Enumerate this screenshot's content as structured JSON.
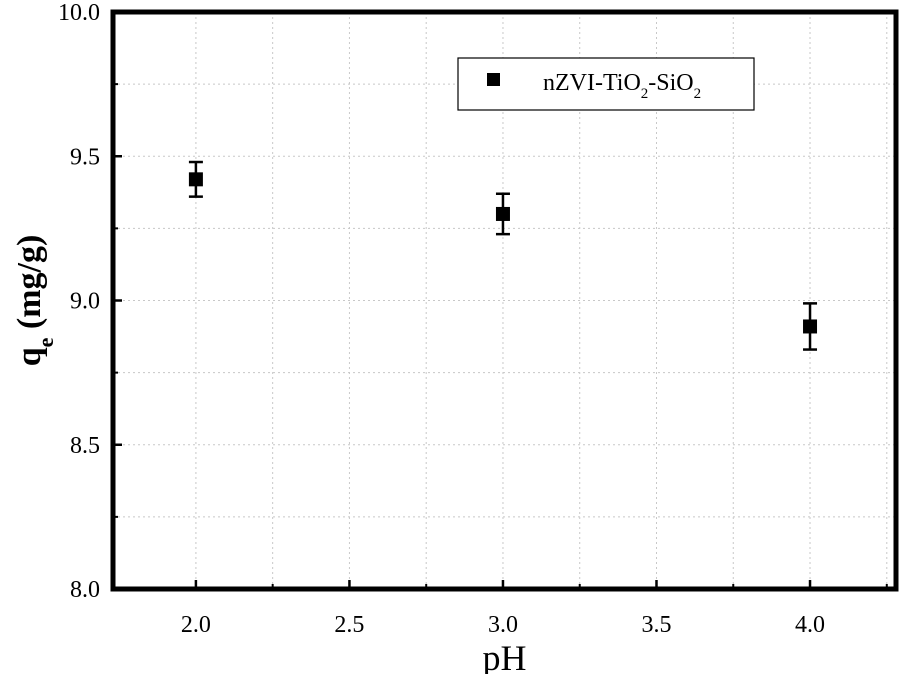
{
  "chart_data": {
    "type": "scatter",
    "title": "",
    "xlabel": "pH",
    "ylabel": "q",
    "ylabel_subscript": "e",
    "ylabel_unit": " (mg/g)",
    "xlim": [
      1.73,
      4.28
    ],
    "ylim": [
      8.0,
      10.0
    ],
    "xticks": [
      2.0,
      2.5,
      3.0,
      3.5,
      4.0
    ],
    "xtick_labels": [
      "2.0",
      "2.5",
      "3.0",
      "3.5",
      "4.0"
    ],
    "yticks": [
      8.0,
      8.5,
      9.0,
      9.5,
      10.0
    ],
    "ytick_labels": [
      "8.0",
      "8.5",
      "9.0",
      "9.5",
      "10.0"
    ],
    "grid": true,
    "legend_position": "top-right",
    "series": [
      {
        "name": "nZVI-TiO2-SiO2",
        "legend_parts": [
          {
            "text": "nZVI-TiO",
            "sub": false
          },
          {
            "text": "2",
            "sub": true
          },
          {
            "text": "-SiO",
            "sub": false
          },
          {
            "text": "2",
            "sub": true
          }
        ],
        "color": "#000000",
        "marker": "square",
        "x": [
          2.0,
          3.0,
          4.0
        ],
        "y": [
          9.42,
          9.3,
          8.91
        ],
        "error": [
          0.06,
          0.07,
          0.08
        ]
      }
    ]
  }
}
